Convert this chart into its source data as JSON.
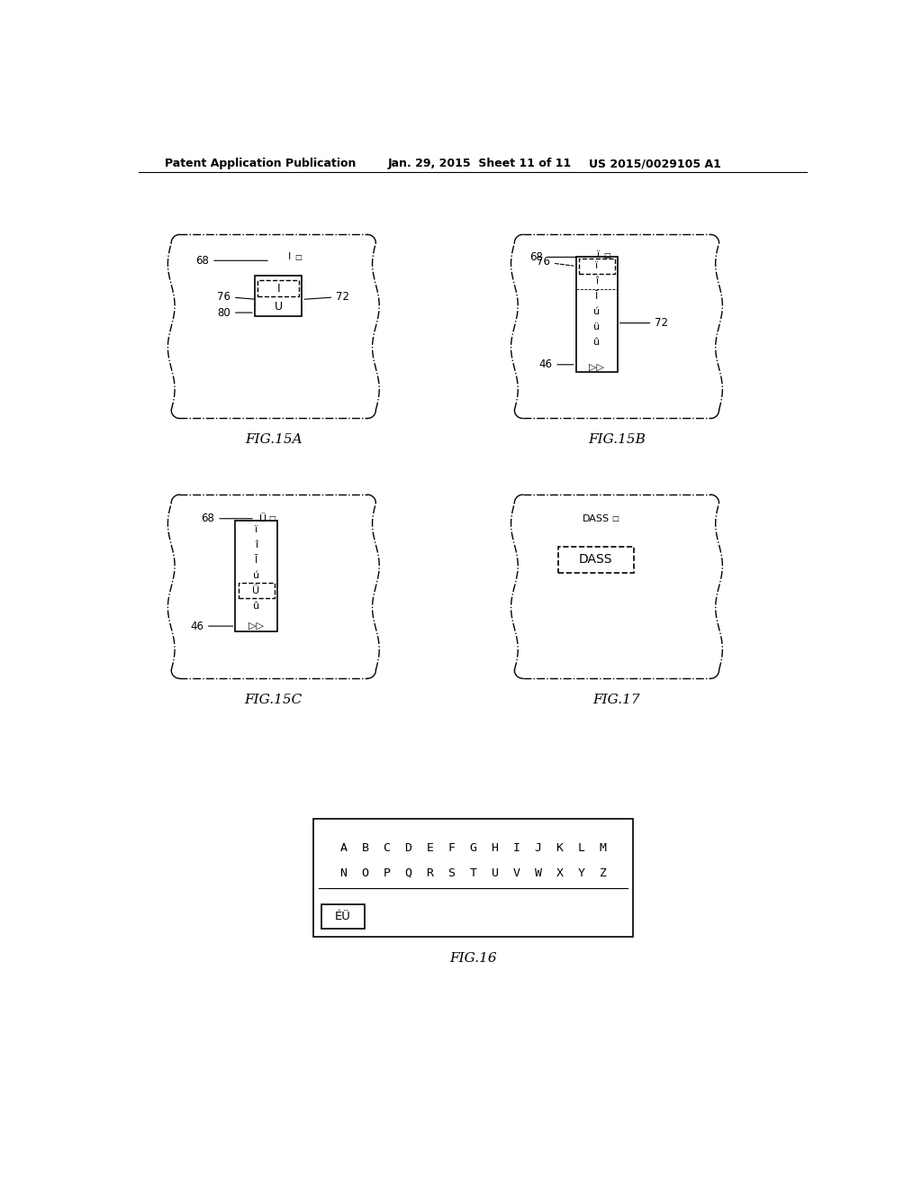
{
  "bg_color": "#ffffff",
  "header_text": "Patent Application Publication",
  "header_date": "Jan. 29, 2015  Sheet 11 of 11",
  "header_patent": "US 2015/0029105 A1"
}
